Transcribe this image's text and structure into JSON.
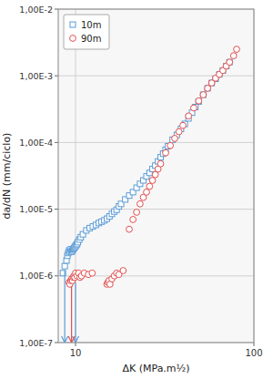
{
  "chart_data": {
    "type": "scatter",
    "xlabel": "ΔK (MPa.m½)",
    "ylabel": "da/dN (mm/ciclo)",
    "log": true,
    "grid": true,
    "legend": "upper left",
    "xlim": [
      8,
      100
    ],
    "ylim": [
      1e-07,
      0.01
    ],
    "xticks": [
      10,
      100
    ],
    "yticks": [
      {
        "value": 1e-07,
        "label": "1,00E-7"
      },
      {
        "value": 1e-06,
        "label": "1,00E-6"
      },
      {
        "value": 1e-05,
        "label": "1,00E-5"
      },
      {
        "value": 0.0001,
        "label": "1,00E-4"
      },
      {
        "value": 0.001,
        "label": "1,00E-3"
      },
      {
        "value": 0.01,
        "label": "1,00E-2"
      }
    ],
    "series": [
      {
        "name": "10m",
        "color": "#5b9bd5",
        "marker": "square",
        "x": [
          8.5,
          8.7,
          8.9,
          9.0,
          9.1,
          9.2,
          9.3,
          9.4,
          9.5,
          9.6,
          9.7,
          9.8,
          9.9,
          10.0,
          10.1,
          10.2,
          10.3,
          10.5,
          10.7,
          11.0,
          11.5,
          12.0,
          12.5,
          13.0,
          13.5,
          14.0,
          14.5,
          15.0,
          15.5,
          16.0,
          16.5,
          17.0,
          17.5,
          18.0,
          19.0,
          20.0,
          21.0,
          22.0,
          23.0,
          24.0,
          25.0,
          26.0,
          27.0,
          28.0,
          29.0,
          30.0,
          31.0,
          32.0,
          33.0,
          35.0,
          37.0,
          39.0,
          41.0,
          43.0,
          45.0,
          47.0,
          49.0,
          52.0,
          55.0,
          58.0,
          61.0,
          64.0,
          67.0,
          70.0,
          73.0
        ],
        "values": [
          1.1e-06,
          1.4e-06,
          1.7e-06,
          2e-06,
          2.2e-06,
          2.4e-06,
          2.3e-06,
          2.5e-06,
          2.3e-06,
          2.4e-06,
          2.5e-06,
          2.6e-06,
          2.7e-06,
          2.8e-06,
          2.9e-06,
          3e-06,
          3.2e-06,
          3.5e-06,
          3.8e-06,
          4.2e-06,
          4.8e-06,
          5.2e-06,
          5.5e-06,
          5.8e-06,
          6.2e-06,
          6.5e-06,
          6.8e-06,
          7.2e-06,
          7.8e-06,
          8.5e-06,
          9.2e-06,
          9.8e-06,
          1.1e-05,
          1.2e-05,
          1.4e-05,
          1.6e-05,
          1.8e-05,
          2.1e-05,
          2.4e-05,
          2.7e-05,
          3.1e-05,
          3.5e-05,
          4e-05,
          4.5e-05,
          5.2e-05,
          6e-05,
          6.8e-05,
          7.8e-05,
          8.8e-05,
          0.00011,
          0.00013,
          0.00016,
          0.00019,
          0.00023,
          0.00028,
          0.00034,
          0.00041,
          0.00052,
          0.00065,
          0.00078,
          0.0009,
          0.00105,
          0.0012,
          0.0014,
          0.0016
        ]
      },
      {
        "name": "90m",
        "color": "#e05050",
        "marker": "circle",
        "x": [
          9.2,
          9.3,
          9.4,
          9.5,
          9.6,
          9.7,
          9.8,
          9.9,
          10.0,
          10.2,
          10.4,
          10.6,
          10.8,
          11.2,
          11.8,
          12.4,
          15.0,
          15.2,
          15.4,
          15.6,
          16.0,
          16.5,
          17.0,
          17.5,
          18.5,
          20.0,
          21.0,
          22.0,
          23.0,
          24.0,
          25.0,
          26.0,
          27.0,
          28.0,
          29.0,
          30.0,
          32.0,
          34.0,
          36.0,
          38.0,
          40.0,
          43.0,
          46.0,
          49.0,
          52.0,
          55.0,
          58.0,
          61.0,
          64.0,
          67.0,
          70.0,
          73.0,
          77.0,
          80.0
        ],
        "values": [
          8e-07,
          7.5e-07,
          8.5e-07,
          9e-07,
          8.5e-07,
          9.5e-07,
          1e-06,
          9.5e-07,
          1.1e-06,
          1e-06,
          1.1e-06,
          9.5e-07,
          1e-06,
          1.1e-06,
          1.05e-06,
          1.1e-06,
          7.5e-07,
          8e-07,
          8.5e-07,
          7.5e-07,
          9e-07,
          1e-06,
          1.1e-06,
          1.05e-06,
          1.2e-06,
          5e-06,
          7e-06,
          9e-06,
          1.2e-05,
          1.5e-05,
          1.8e-05,
          2.2e-05,
          2.7e-05,
          3.3e-05,
          4e-05,
          4.8e-05,
          7e-05,
          9e-05,
          0.000115,
          0.000145,
          0.00018,
          0.00025,
          0.00033,
          0.00042,
          0.00052,
          0.00065,
          0.00078,
          0.00092,
          0.00105,
          0.0012,
          0.0014,
          0.0016,
          0.002,
          0.0025
        ]
      }
    ],
    "arrows": [
      {
        "x": 8.7,
        "y_start": 1.2e-06,
        "y_end": 1e-07,
        "color": "#5b9bd5"
      },
      {
        "x": 10.0,
        "y_start": 8e-07,
        "y_end": 1e-07,
        "color": "#5b9bd5"
      },
      {
        "x": 9.5,
        "y_start": 7e-07,
        "y_end": 1e-07,
        "color": "#e05050"
      }
    ]
  }
}
